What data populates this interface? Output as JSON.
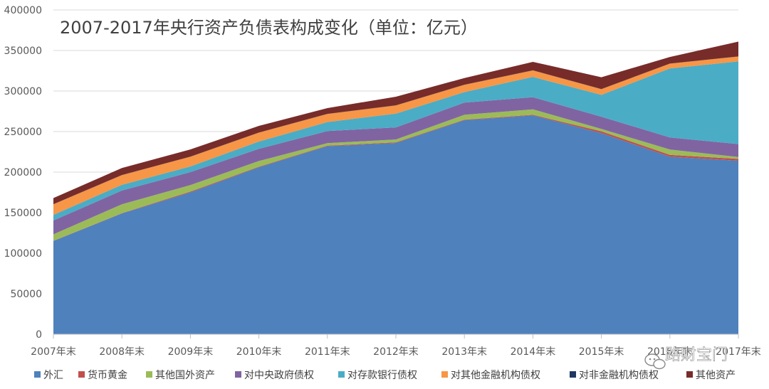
{
  "chart_data": {
    "type": "area",
    "stacked": true,
    "title": "2007-2017年央行资产负债表构成变化（单位：亿元）",
    "xlabel": "",
    "ylabel": "",
    "ylim": [
      0,
      400000
    ],
    "yticks": [
      0,
      50000,
      100000,
      150000,
      200000,
      250000,
      300000,
      350000,
      400000
    ],
    "grid": true,
    "legend_position": "bottom",
    "categories": [
      "2007年末",
      "2008年末",
      "2009年末",
      "2010年末",
      "2011年末",
      "2012年末",
      "2013年末",
      "2014年末",
      "2015年末",
      "2016年末",
      "2017年末"
    ],
    "series": [
      {
        "name": "外汇",
        "color": "#4f81bd",
        "values": [
          115000,
          149000,
          175000,
          206000,
          232000,
          236000,
          264000,
          270000,
          248000,
          219000,
          214000
        ]
      },
      {
        "name": "货币黄金",
        "color": "#c0504d",
        "values": [
          300,
          300,
          1000,
          700,
          700,
          700,
          700,
          700,
          2300,
          2300,
          2300
        ]
      },
      {
        "name": "其他国外资产",
        "color": "#9bbb59",
        "values": [
          8000,
          11000,
          8000,
          7000,
          3000,
          3500,
          6000,
          6700,
          3000,
          6500,
          2300
        ]
      },
      {
        "name": "对中央政府债权",
        "color": "#8064a2",
        "values": [
          17000,
          17000,
          16000,
          15000,
          15000,
          15000,
          15000,
          15000,
          15000,
          15000,
          16000
        ]
      },
      {
        "name": "对存款银行债权",
        "color": "#4bacc6",
        "values": [
          7000,
          7000,
          7000,
          9000,
          11000,
          17000,
          13000,
          25000,
          27000,
          85000,
          102000
        ]
      },
      {
        "name": "对其他金融机构债权",
        "color": "#f79646",
        "values": [
          13000,
          12000,
          12000,
          11000,
          10000,
          10000,
          9000,
          8000,
          7000,
          6000,
          6000
        ]
      },
      {
        "name": "对非金融机构债权",
        "color": "#1f3864",
        "values": [
          100,
          100,
          100,
          100,
          100,
          100,
          100,
          100,
          100,
          100,
          100
        ]
      },
      {
        "name": "其他资产",
        "color": "#772c2a",
        "values": [
          7600,
          8600,
          8900,
          8200,
          7200,
          10700,
          8200,
          10500,
          14600,
          8100,
          18300
        ]
      }
    ]
  },
  "watermark": {
    "text": "路财宝门",
    "icon": "wechat-icon"
  }
}
